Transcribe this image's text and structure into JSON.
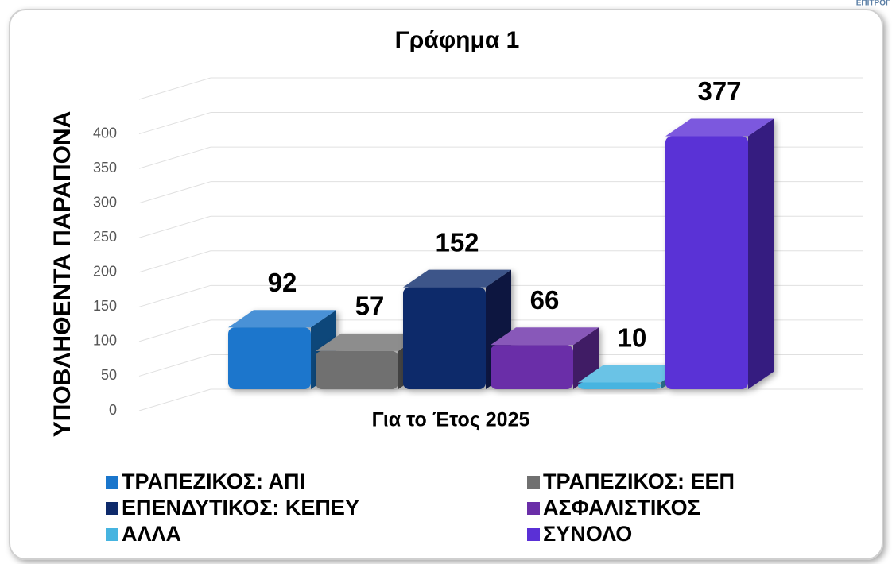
{
  "logo_text": "ΕΠΙΤΡΟΓ",
  "chart_data": {
    "type": "bar3d",
    "title": "Γράφημα 1",
    "y_label": "ΥΠΟΒΛΗΘΕΝΤΑ ΠΑΡΑΠΟΝΑ",
    "categories": [
      "Για το Έτος 2025"
    ],
    "series": [
      {
        "name": "ΤΡΑΠΕΖΙΚΟΣ: ΑΠΙ",
        "color": "#1a76cc",
        "values": [
          92
        ]
      },
      {
        "name": "ΤΡΑΠΕΖΙΚΟΣ: ΕΕΠ",
        "color": "#707070",
        "values": [
          57
        ]
      },
      {
        "name": "ΕΠΕΝΔΥΤΙΚΟΣ: ΚΕΠΕΥ",
        "color": "#0e2a6b",
        "values": [
          152
        ]
      },
      {
        "name": "ΑΣΦΑΛΙΣΤΙΚΟΣ",
        "color": "#6a2ea8",
        "values": [
          66
        ]
      },
      {
        "name": "ΑΛΛΑ",
        "color": "#46b4e0",
        "values": [
          10
        ]
      },
      {
        "name": "ΣΥΝΟΛΟ",
        "color": "#5a30d6",
        "values": [
          377
        ]
      }
    ],
    "ylim": [
      0,
      450
    ],
    "yticks": [
      0,
      50,
      100,
      150,
      200,
      250,
      300,
      350,
      400
    ],
    "grid": true
  }
}
